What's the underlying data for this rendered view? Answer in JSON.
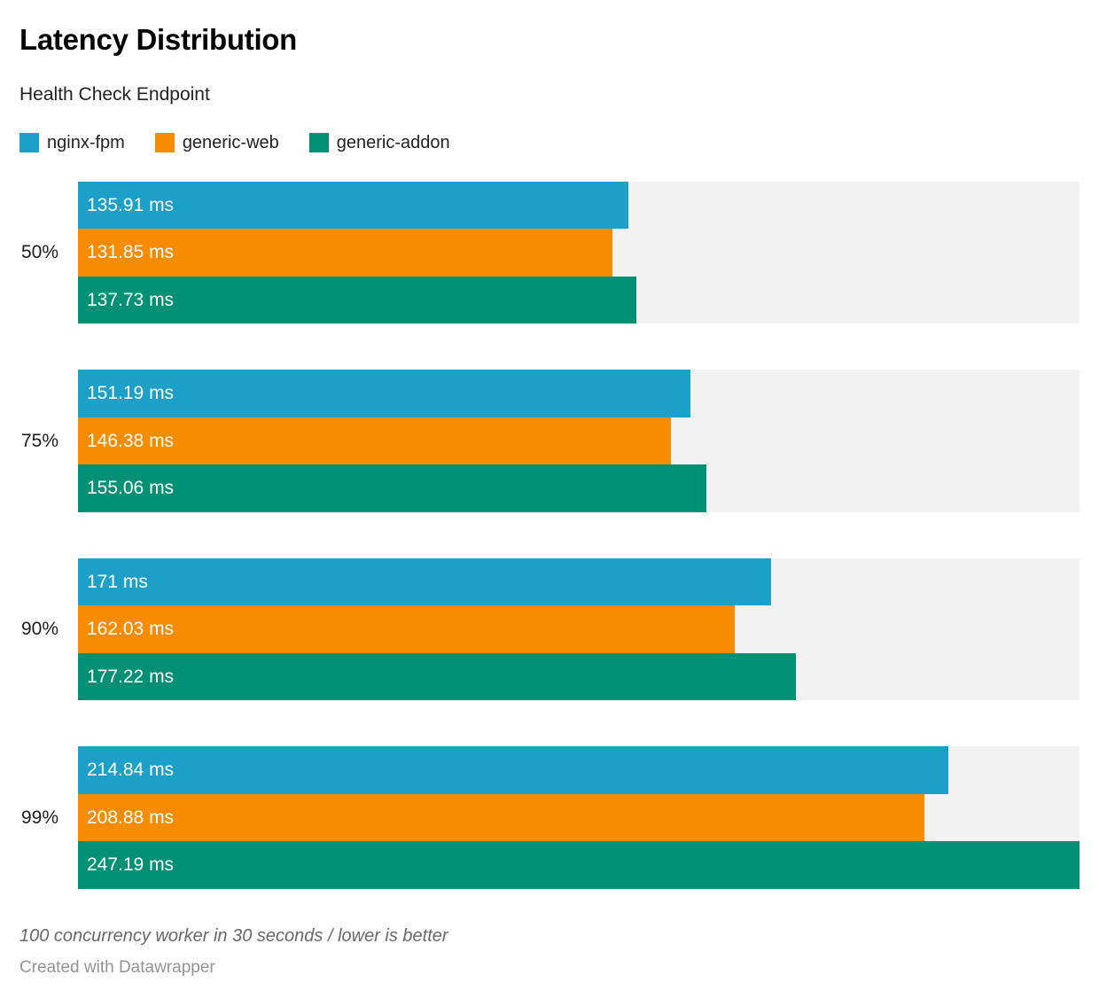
{
  "header": {
    "title": "Latency Distribution",
    "subtitle": "Health Check Endpoint"
  },
  "legend": {
    "items": [
      {
        "label": "nginx-fpm",
        "color": "#1ca0c8"
      },
      {
        "label": "generic-web",
        "color": "#f88c00"
      },
      {
        "label": "generic-addon",
        "color": "#009175"
      }
    ]
  },
  "colors": {
    "track": "#f2f2f2",
    "bar_label_text": "#ffffff"
  },
  "chart_data": {
    "type": "bar",
    "orientation": "horizontal",
    "title": "Latency Distribution",
    "subtitle": "Health Check Endpoint",
    "unit": "ms",
    "grid": false,
    "legend_position": "top",
    "categories": [
      "50%",
      "75%",
      "90%",
      "99%"
    ],
    "xlim": [
      0,
      247.19
    ],
    "series": [
      {
        "name": "nginx-fpm",
        "color": "#1ca0c8",
        "values": [
          135.91,
          151.19,
          171,
          214.84
        ],
        "labels": [
          "135.91 ms",
          "151.19 ms",
          "171 ms",
          "214.84 ms"
        ]
      },
      {
        "name": "generic-web",
        "color": "#f88c00",
        "values": [
          131.85,
          146.38,
          162.03,
          208.88
        ],
        "labels": [
          "131.85 ms",
          "146.38 ms",
          "162.03 ms",
          "208.88 ms"
        ]
      },
      {
        "name": "generic-addon",
        "color": "#009175",
        "values": [
          137.73,
          155.06,
          177.22,
          247.19
        ],
        "labels": [
          "137.73 ms",
          "155.06 ms",
          "177.22 ms",
          "247.19 ms"
        ]
      }
    ]
  },
  "footer": {
    "note": "100 concurrency worker in 30 seconds / lower is better",
    "attribution": "Created with Datawrapper"
  }
}
